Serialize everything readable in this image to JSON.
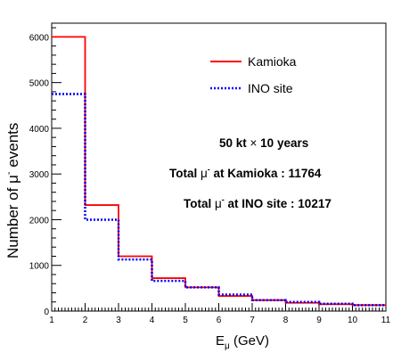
{
  "chart_data": {
    "type": "histogram",
    "x": {
      "bin_edges": [
        1,
        2,
        3,
        4,
        5,
        6,
        7,
        8,
        9,
        10,
        11
      ],
      "range": [
        1,
        11
      ],
      "ticks": [
        1,
        2,
        3,
        4,
        5,
        6,
        7,
        8,
        9,
        10,
        11
      ],
      "tick_labels": [
        "1",
        "2",
        "3",
        "4",
        "5",
        "6",
        "7",
        "8",
        "9",
        "10",
        "11"
      ],
      "label_main": "E",
      "label_sub": "μ",
      "label_unit": " (GeV)"
    },
    "y": {
      "range": [
        0,
        6300
      ],
      "ticks": [
        0,
        1000,
        2000,
        3000,
        4000,
        5000,
        6000
      ],
      "tick_labels": [
        "0",
        "1000",
        "2000",
        "3000",
        "4000",
        "5000",
        "6000"
      ],
      "label_pre": "Number of  ",
      "label_mu": "μ",
      "label_sup": "-",
      "label_post": "  events"
    },
    "series": [
      {
        "name": "Kamioka",
        "color": "#ff0000",
        "style": "solid",
        "values": [
          6000,
          2320,
          1200,
          720,
          520,
          330,
          240,
          180,
          150,
          130
        ]
      },
      {
        "name": "INO site",
        "color": "#0000ff",
        "style": "dotted",
        "values": [
          4750,
          2000,
          1130,
          660,
          520,
          360,
          240,
          200,
          160,
          130
        ]
      }
    ],
    "annotations": {
      "exposure_pre": "50 kt ",
      "exposure_times": "×",
      "exposure_post": " 10 years",
      "total_pre": "Total  ",
      "total_mu": "μ",
      "total_sup": "-",
      "kamioka_post": " at Kamioka  : 11764",
      "ino_post": " at INO site : 10217"
    }
  }
}
